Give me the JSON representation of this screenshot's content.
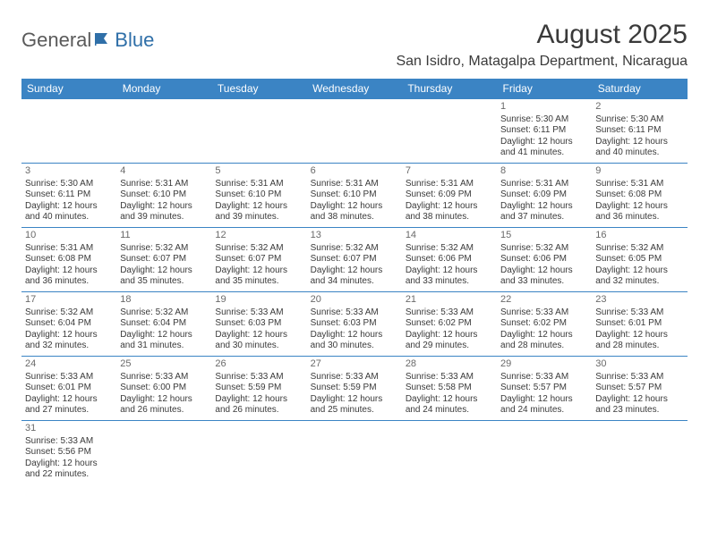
{
  "logo": {
    "part1": "General",
    "part2": "Blue"
  },
  "title": "August 2025",
  "location": "San Isidro, Matagalpa Department, Nicaragua",
  "colors": {
    "header_bg": "#3b84c4",
    "header_text": "#ffffff",
    "border": "#3b84c4",
    "text": "#3a3a3a",
    "daynum": "#6a6a6a",
    "logo_general": "#5a5a5a",
    "logo_blue": "#2f6fa8"
  },
  "weekdays": [
    "Sunday",
    "Monday",
    "Tuesday",
    "Wednesday",
    "Thursday",
    "Friday",
    "Saturday"
  ],
  "days": [
    {
      "n": 1,
      "sunrise": "5:30 AM",
      "sunset": "6:11 PM",
      "daylight": "12 hours and 41 minutes."
    },
    {
      "n": 2,
      "sunrise": "5:30 AM",
      "sunset": "6:11 PM",
      "daylight": "12 hours and 40 minutes."
    },
    {
      "n": 3,
      "sunrise": "5:30 AM",
      "sunset": "6:11 PM",
      "daylight": "12 hours and 40 minutes."
    },
    {
      "n": 4,
      "sunrise": "5:31 AM",
      "sunset": "6:10 PM",
      "daylight": "12 hours and 39 minutes."
    },
    {
      "n": 5,
      "sunrise": "5:31 AM",
      "sunset": "6:10 PM",
      "daylight": "12 hours and 39 minutes."
    },
    {
      "n": 6,
      "sunrise": "5:31 AM",
      "sunset": "6:10 PM",
      "daylight": "12 hours and 38 minutes."
    },
    {
      "n": 7,
      "sunrise": "5:31 AM",
      "sunset": "6:09 PM",
      "daylight": "12 hours and 38 minutes."
    },
    {
      "n": 8,
      "sunrise": "5:31 AM",
      "sunset": "6:09 PM",
      "daylight": "12 hours and 37 minutes."
    },
    {
      "n": 9,
      "sunrise": "5:31 AM",
      "sunset": "6:08 PM",
      "daylight": "12 hours and 36 minutes."
    },
    {
      "n": 10,
      "sunrise": "5:31 AM",
      "sunset": "6:08 PM",
      "daylight": "12 hours and 36 minutes."
    },
    {
      "n": 11,
      "sunrise": "5:32 AM",
      "sunset": "6:07 PM",
      "daylight": "12 hours and 35 minutes."
    },
    {
      "n": 12,
      "sunrise": "5:32 AM",
      "sunset": "6:07 PM",
      "daylight": "12 hours and 35 minutes."
    },
    {
      "n": 13,
      "sunrise": "5:32 AM",
      "sunset": "6:07 PM",
      "daylight": "12 hours and 34 minutes."
    },
    {
      "n": 14,
      "sunrise": "5:32 AM",
      "sunset": "6:06 PM",
      "daylight": "12 hours and 33 minutes."
    },
    {
      "n": 15,
      "sunrise": "5:32 AM",
      "sunset": "6:06 PM",
      "daylight": "12 hours and 33 minutes."
    },
    {
      "n": 16,
      "sunrise": "5:32 AM",
      "sunset": "6:05 PM",
      "daylight": "12 hours and 32 minutes."
    },
    {
      "n": 17,
      "sunrise": "5:32 AM",
      "sunset": "6:04 PM",
      "daylight": "12 hours and 32 minutes."
    },
    {
      "n": 18,
      "sunrise": "5:32 AM",
      "sunset": "6:04 PM",
      "daylight": "12 hours and 31 minutes."
    },
    {
      "n": 19,
      "sunrise": "5:33 AM",
      "sunset": "6:03 PM",
      "daylight": "12 hours and 30 minutes."
    },
    {
      "n": 20,
      "sunrise": "5:33 AM",
      "sunset": "6:03 PM",
      "daylight": "12 hours and 30 minutes."
    },
    {
      "n": 21,
      "sunrise": "5:33 AM",
      "sunset": "6:02 PM",
      "daylight": "12 hours and 29 minutes."
    },
    {
      "n": 22,
      "sunrise": "5:33 AM",
      "sunset": "6:02 PM",
      "daylight": "12 hours and 28 minutes."
    },
    {
      "n": 23,
      "sunrise": "5:33 AM",
      "sunset": "6:01 PM",
      "daylight": "12 hours and 28 minutes."
    },
    {
      "n": 24,
      "sunrise": "5:33 AM",
      "sunset": "6:01 PM",
      "daylight": "12 hours and 27 minutes."
    },
    {
      "n": 25,
      "sunrise": "5:33 AM",
      "sunset": "6:00 PM",
      "daylight": "12 hours and 26 minutes."
    },
    {
      "n": 26,
      "sunrise": "5:33 AM",
      "sunset": "5:59 PM",
      "daylight": "12 hours and 26 minutes."
    },
    {
      "n": 27,
      "sunrise": "5:33 AM",
      "sunset": "5:59 PM",
      "daylight": "12 hours and 25 minutes."
    },
    {
      "n": 28,
      "sunrise": "5:33 AM",
      "sunset": "5:58 PM",
      "daylight": "12 hours and 24 minutes."
    },
    {
      "n": 29,
      "sunrise": "5:33 AM",
      "sunset": "5:57 PM",
      "daylight": "12 hours and 24 minutes."
    },
    {
      "n": 30,
      "sunrise": "5:33 AM",
      "sunset": "5:57 PM",
      "daylight": "12 hours and 23 minutes."
    },
    {
      "n": 31,
      "sunrise": "5:33 AM",
      "sunset": "5:56 PM",
      "daylight": "12 hours and 22 minutes."
    }
  ],
  "layout": {
    "start_weekday_index": 5,
    "total_rows": 6
  },
  "labels": {
    "sunrise": "Sunrise",
    "sunset": "Sunset",
    "daylight": "Daylight"
  }
}
